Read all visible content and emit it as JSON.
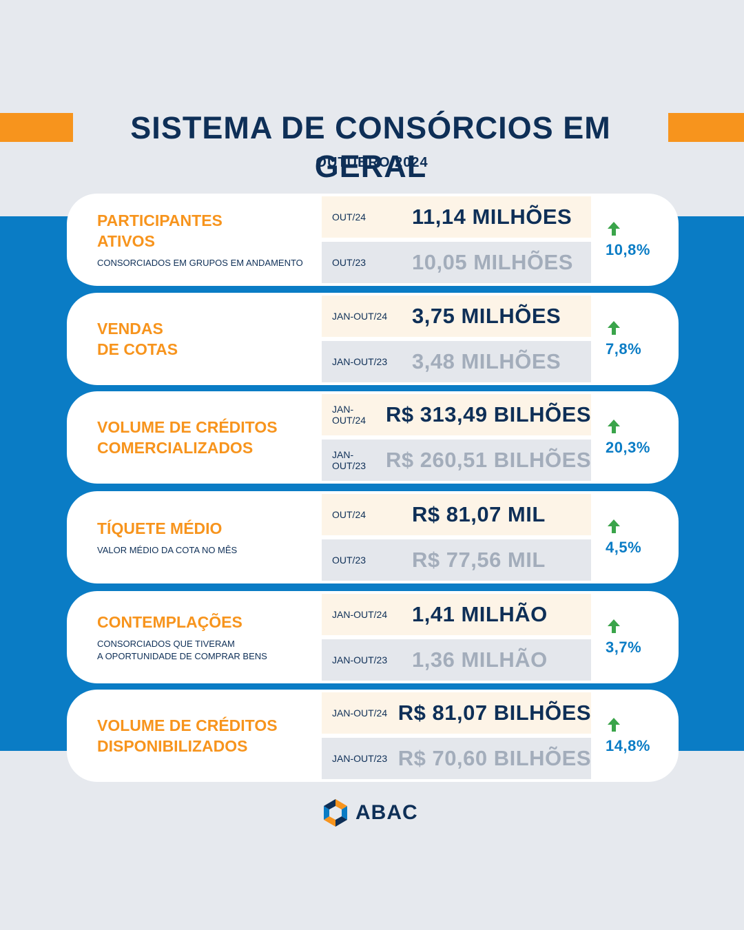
{
  "header": {
    "title": "SISTEMA DE CONSÓRCIOS EM GERAL",
    "subtitle": "OUTUBRO/2024"
  },
  "colors": {
    "navy": "#0e2f57",
    "orange": "#f7941d",
    "blue": "#0a7cc5",
    "up_arrow": "#3aa44a"
  },
  "cards": [
    {
      "title": "PARTICIPANTES\nATIVOS",
      "description": "CONSORCIADOS EM GRUPOS EM ANDAMENTO",
      "current_period": "OUT/24",
      "current_value": "11,14 MILHÕES",
      "previous_period": "OUT/23",
      "previous_value": "10,05 MILHÕES",
      "change": "10,8%",
      "trend_icon": "arrow-up-icon"
    },
    {
      "title": "VENDAS\nDE COTAS",
      "description": "",
      "current_period": "JAN-OUT/24",
      "current_value": "3,75 MILHÕES",
      "previous_period": "JAN-OUT/23",
      "previous_value": "3,48 MILHÕES",
      "change": "7,8%",
      "trend_icon": "arrow-up-icon"
    },
    {
      "title": "VOLUME DE CRÉDITOS\nCOMERCIALIZADOS",
      "description": "",
      "current_period": "JAN-OUT/24",
      "current_value": "R$ 313,49 BILHÕES",
      "previous_period": "JAN-OUT/23",
      "previous_value": "R$ 260,51 BILHÕES",
      "change": "20,3%",
      "trend_icon": "arrow-up-icon"
    },
    {
      "title": "TÍQUETE MÉDIO",
      "description": "VALOR MÉDIO DA COTA NO MÊS",
      "current_period": "OUT/24",
      "current_value": "R$ 81,07 MIL",
      "previous_period": "OUT/23",
      "previous_value": "R$ 77,56 MIL",
      "change": "4,5%",
      "trend_icon": "arrow-up-icon"
    },
    {
      "title": "CONTEMPLAÇÕES",
      "description": "CONSORCIADOS QUE TIVERAM\nA OPORTUNIDADE DE COMPRAR BENS",
      "current_period": "JAN-OUT/24",
      "current_value": "1,41 MILHÃO",
      "previous_period": "JAN-OUT/23",
      "previous_value": "1,36 MILHÃO",
      "change": "3,7%",
      "trend_icon": "arrow-up-icon"
    },
    {
      "title": "VOLUME DE CRÉDITOS\nDISPONIBILIZADOS",
      "description": "",
      "current_period": "JAN-OUT/24",
      "current_value": "R$ 81,07 BILHÕES",
      "previous_period": "JAN-OUT/23",
      "previous_value": "R$ 70,60 BILHÕES",
      "change": "14,8%",
      "trend_icon": "arrow-up-icon"
    }
  ],
  "footer": {
    "logo_text": "ABAC",
    "logo_icon": "abac-logo-icon"
  }
}
